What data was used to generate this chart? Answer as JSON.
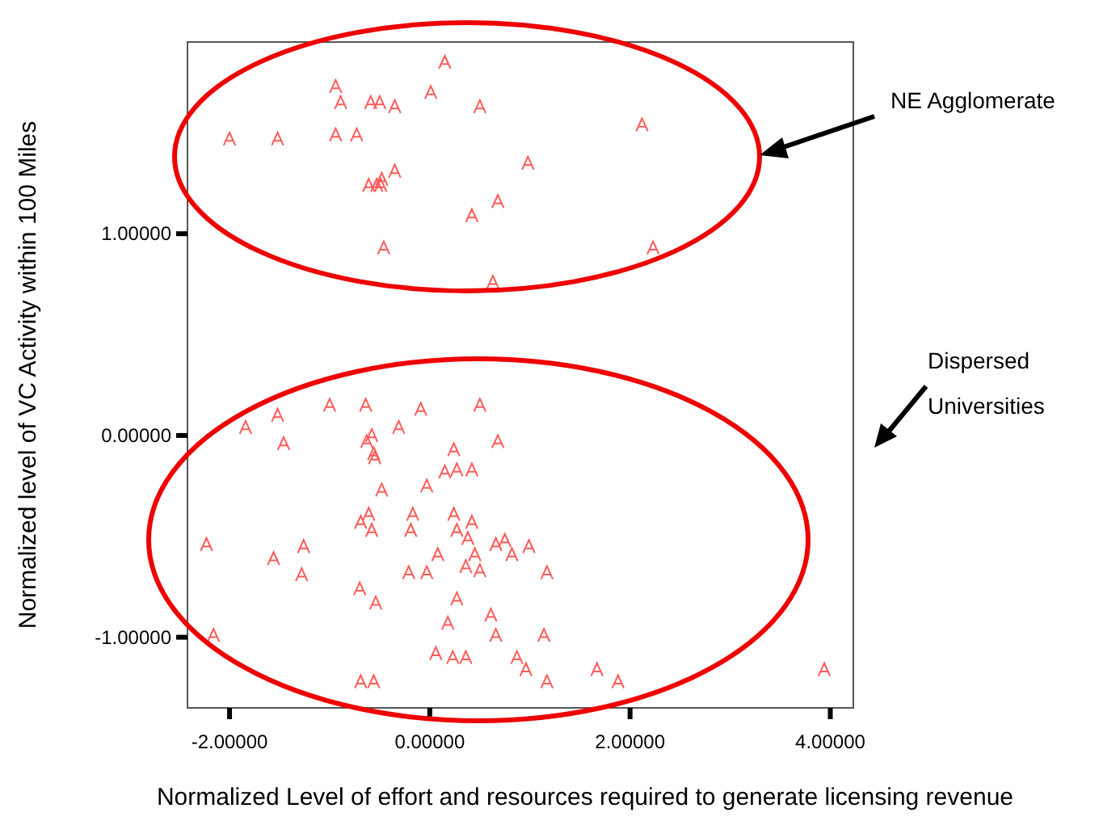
{
  "chart_data": {
    "type": "scatter",
    "xlabel": "Normalized Level of effort and resources required to generate licensing revenue",
    "ylabel": "Normalized level of VC Activity within 100 Miles",
    "xlim": [
      -2.42,
      4.23
    ],
    "ylim": [
      -1.35,
      1.95
    ],
    "xticks": [
      {
        "value": -2,
        "label": "-2.00000"
      },
      {
        "value": 0,
        "label": "0.00000"
      },
      {
        "value": 2,
        "label": "2.00000"
      },
      {
        "value": 4,
        "label": "4.00000"
      }
    ],
    "yticks": [
      {
        "value": -1,
        "label": "-1.00000"
      },
      {
        "value": 0,
        "label": "0.00000"
      },
      {
        "value": 1,
        "label": "1.00000"
      }
    ],
    "grid": false,
    "annotations": [
      "NE Agglomerate",
      "Dispersed Universities"
    ],
    "series": [
      {
        "color": "#ff5a5a",
        "x": [
          0.15,
          -0.94,
          -0.89,
          -0.59,
          -0.5,
          -0.35,
          0.01,
          0.5,
          2.12,
          -2.0,
          -1.52,
          -0.94,
          -0.73,
          0.98,
          -0.35,
          -0.48,
          -0.53,
          -0.61,
          -0.49,
          0.68,
          0.42,
          2.23,
          -0.46,
          0.63,
          -1.0,
          -0.64,
          -0.09,
          0.5,
          -1.52,
          -1.84,
          -0.31,
          -0.58,
          -0.63,
          -1.46,
          -0.56,
          -0.55,
          0.24,
          0.68,
          0.15,
          0.27,
          0.42,
          -0.48,
          -0.03,
          -0.61,
          -0.69,
          -0.58,
          -0.17,
          -0.19,
          0.24,
          0.27,
          0.42,
          0.38,
          -2.23,
          -1.26,
          -1.56,
          -1.28,
          0.08,
          0.45,
          0.36,
          0.5,
          -0.21,
          -0.03,
          -0.7,
          -0.54,
          0.27,
          0.18,
          -2.16,
          0.06,
          0.23,
          0.36,
          -0.69,
          -0.56,
          0.66,
          0.75,
          0.82,
          0.99,
          1.17,
          0.61,
          0.66,
          1.14,
          0.87,
          0.96,
          1.17,
          1.67,
          1.88,
          3.94
        ],
        "values": [
          1.85,
          1.73,
          1.65,
          1.65,
          1.65,
          1.63,
          1.7,
          1.63,
          1.54,
          1.47,
          1.47,
          1.49,
          1.49,
          1.35,
          1.31,
          1.27,
          1.24,
          1.24,
          1.24,
          1.16,
          1.09,
          0.93,
          0.93,
          0.76,
          0.15,
          0.15,
          0.13,
          0.15,
          0.1,
          0.04,
          0.04,
          0.0,
          -0.03,
          -0.04,
          -0.09,
          -0.11,
          -0.07,
          -0.03,
          -0.18,
          -0.17,
          -0.17,
          -0.27,
          -0.25,
          -0.39,
          -0.43,
          -0.47,
          -0.39,
          -0.47,
          -0.39,
          -0.47,
          -0.43,
          -0.51,
          -0.54,
          -0.55,
          -0.61,
          -0.69,
          -0.59,
          -0.59,
          -0.65,
          -0.67,
          -0.68,
          -0.68,
          -0.76,
          -0.83,
          -0.81,
          -0.93,
          -0.99,
          -1.08,
          -1.1,
          -1.1,
          -1.22,
          -1.22,
          -0.54,
          -0.52,
          -0.59,
          -0.55,
          -0.68,
          -0.89,
          -0.99,
          -0.99,
          -1.1,
          -1.16,
          -1.22,
          -1.16,
          -1.22,
          -1.16
        ]
      }
    ]
  }
}
